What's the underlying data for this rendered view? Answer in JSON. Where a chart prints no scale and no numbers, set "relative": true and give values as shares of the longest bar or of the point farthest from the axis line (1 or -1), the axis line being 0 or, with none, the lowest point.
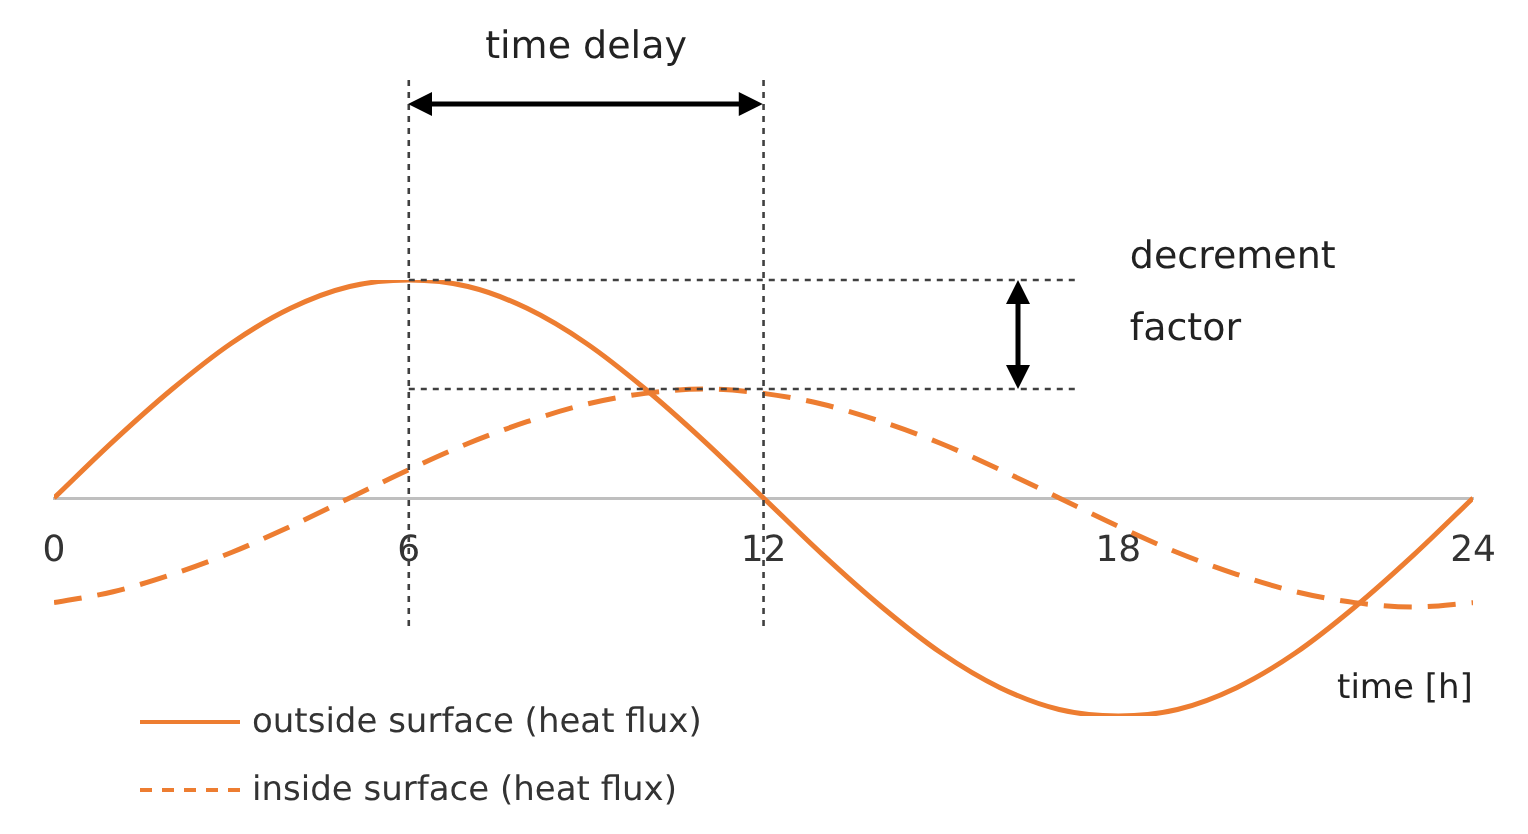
{
  "chart_data": {
    "type": "line",
    "relative": true,
    "xlabel": "time [h]",
    "x": [
      0,
      1,
      2,
      3,
      4,
      5,
      6,
      7,
      8,
      9,
      10,
      11,
      12,
      13,
      14,
      15,
      16,
      17,
      18,
      19,
      20,
      21,
      22,
      23,
      24
    ],
    "xlim": [
      0,
      24
    ],
    "xticks": [
      0,
      6,
      12,
      18,
      24
    ],
    "grid": false,
    "legend": "bottom left",
    "series": [
      {
        "name": "outside surface (heat flux)",
        "color": "#ed7d31",
        "line_style": "solid",
        "values": [
          0,
          0.26,
          0.5,
          0.71,
          0.87,
          0.97,
          1,
          0.97,
          0.87,
          0.71,
          0.5,
          0.26,
          0,
          -0.26,
          -0.5,
          -0.71,
          -0.87,
          -0.97,
          -1,
          -0.97,
          -0.87,
          -0.71,
          -0.5,
          -0.26,
          0
        ]
      },
      {
        "name": "inside surface (heat flux)",
        "color": "#ed7d31",
        "line_style": "dashed",
        "values": [
          -0.48,
          -0.43,
          -0.35,
          -0.25,
          -0.13,
          0,
          0.13,
          0.25,
          0.35,
          0.43,
          0.48,
          0.5,
          0.48,
          0.43,
          0.35,
          0.25,
          0.13,
          0,
          -0.13,
          -0.25,
          -0.35,
          -0.43,
          -0.48,
          -0.5,
          -0.48
        ]
      }
    ],
    "ref_lines": [
      {
        "axis": "x",
        "value": 6,
        "color": "#404040",
        "line_style": "dotted"
      },
      {
        "axis": "x",
        "value": 12,
        "color": "#404040",
        "line_style": "dotted"
      },
      {
        "axis": "y",
        "value": 1,
        "color": "#404040",
        "line_style": "dotted"
      },
      {
        "axis": "y",
        "value": 0.5,
        "color": "#404040",
        "line_style": "dotted"
      }
    ],
    "annotations": [
      "time delay",
      "decrement factor"
    ]
  }
}
